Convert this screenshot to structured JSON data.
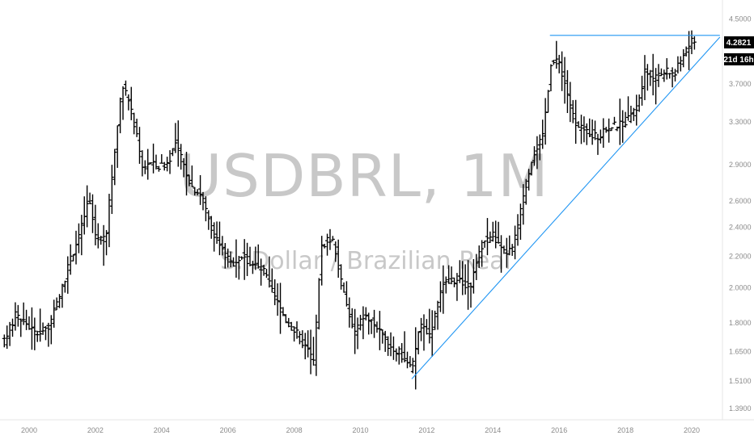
{
  "watermark": {
    "symbol": "USDBRL, 1M",
    "description": "S. Dollar / Brazilian Real"
  },
  "price_tag": {
    "value": "4.2821",
    "countdown": "21d 16h"
  },
  "colors": {
    "bars": "#000000",
    "trendline": "#2196f3",
    "watermark": "#c8c8c8",
    "axis_text": "#8a8a8a",
    "tag_bg": "#000000"
  },
  "chart_data": {
    "type": "bar",
    "style": "ohlc-monthly",
    "scale": "log",
    "ylim": [
      1.37,
      4.65
    ],
    "xlim": [
      1999.25,
      2021.0
    ],
    "y_ticks": [
      "4.5000",
      "4.2821",
      "3.7000",
      "3.3000",
      "2.9000",
      "2.6000",
      "2.4000",
      "2.2000",
      "2.0000",
      "1.8000",
      "1.6500",
      "1.5100",
      "1.3900"
    ],
    "x_ticks": [
      "2000",
      "2002",
      "2004",
      "2006",
      "2008",
      "2010",
      "2012",
      "2014",
      "2016",
      "2018",
      "2020"
    ],
    "anchors": [
      [
        1999.25,
        1.7
      ],
      [
        1999.6,
        1.85
      ],
      [
        1999.9,
        1.8
      ],
      [
        2000.2,
        1.74
      ],
      [
        2000.6,
        1.78
      ],
      [
        2000.9,
        1.94
      ],
      [
        2001.25,
        2.18
      ],
      [
        2001.6,
        2.42
      ],
      [
        2001.8,
        2.62
      ],
      [
        2002.0,
        2.35
      ],
      [
        2002.3,
        2.3
      ],
      [
        2002.55,
        2.95
      ],
      [
        2002.8,
        3.7
      ],
      [
        2003.0,
        3.5
      ],
      [
        2003.2,
        3.25
      ],
      [
        2003.4,
        2.87
      ],
      [
        2003.6,
        2.92
      ],
      [
        2003.9,
        2.88
      ],
      [
        2004.2,
        2.92
      ],
      [
        2004.4,
        3.1
      ],
      [
        2004.6,
        2.95
      ],
      [
        2004.9,
        2.72
      ],
      [
        2005.2,
        2.65
      ],
      [
        2005.5,
        2.4
      ],
      [
        2005.8,
        2.25
      ],
      [
        2006.1,
        2.15
      ],
      [
        2006.4,
        2.2
      ],
      [
        2006.8,
        2.14
      ],
      [
        2007.1,
        2.1
      ],
      [
        2007.4,
        1.95
      ],
      [
        2007.8,
        1.8
      ],
      [
        2008.1,
        1.74
      ],
      [
        2008.4,
        1.66
      ],
      [
        2008.6,
        1.6
      ],
      [
        2008.8,
        2.25
      ],
      [
        2009.0,
        2.32
      ],
      [
        2009.2,
        2.3
      ],
      [
        2009.45,
        2.0
      ],
      [
        2009.8,
        1.74
      ],
      [
        2010.1,
        1.84
      ],
      [
        2010.4,
        1.8
      ],
      [
        2010.8,
        1.69
      ],
      [
        2011.2,
        1.64
      ],
      [
        2011.55,
        1.56
      ],
      [
        2011.8,
        1.8
      ],
      [
        2012.1,
        1.74
      ],
      [
        2012.5,
        2.02
      ],
      [
        2012.9,
        2.05
      ],
      [
        2013.3,
        2.0
      ],
      [
        2013.7,
        2.3
      ],
      [
        2014.0,
        2.35
      ],
      [
        2014.3,
        2.22
      ],
      [
        2014.6,
        2.25
      ],
      [
        2014.9,
        2.6
      ],
      [
        2015.2,
        3.0
      ],
      [
        2015.5,
        3.15
      ],
      [
        2015.75,
        3.95
      ],
      [
        2016.0,
        3.95
      ],
      [
        2016.25,
        3.6
      ],
      [
        2016.5,
        3.25
      ],
      [
        2016.9,
        3.2
      ],
      [
        2017.2,
        3.15
      ],
      [
        2017.5,
        3.25
      ],
      [
        2017.9,
        3.28
      ],
      [
        2018.3,
        3.4
      ],
      [
        2018.6,
        3.85
      ],
      [
        2018.9,
        3.75
      ],
      [
        2019.2,
        3.85
      ],
      [
        2019.5,
        3.82
      ],
      [
        2019.8,
        4.1
      ],
      [
        2020.1,
        4.25
      ]
    ],
    "trendlines": [
      {
        "from": [
          2011.55,
          1.52
        ],
        "to": [
          2020.85,
          4.26
        ]
      },
      {
        "from": [
          2015.72,
          4.2821
        ],
        "to": [
          2020.85,
          4.2821
        ]
      }
    ]
  }
}
